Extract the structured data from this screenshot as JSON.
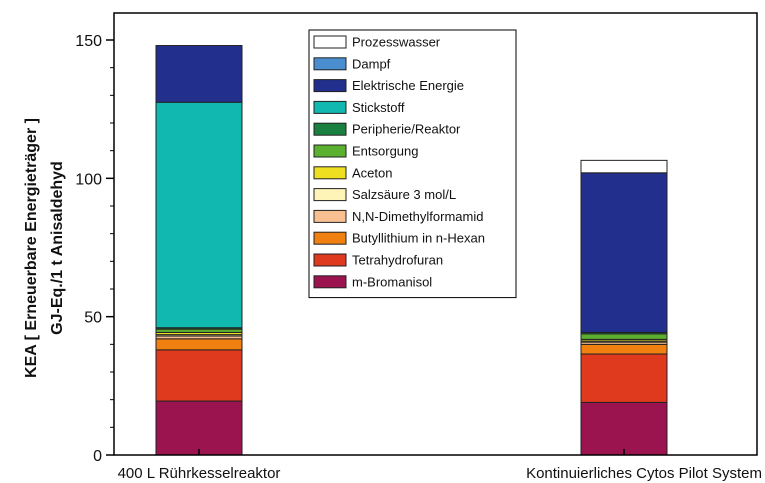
{
  "chart_data": {
    "type": "bar",
    "stacked": true,
    "ylabel_line1": "KEA  [ Erneuerbare Energieträger ]",
    "ylabel_line2": "GJ-Eq./1 t Anisaldehyd",
    "ylim": [
      0,
      160
    ],
    "yticks": [
      0,
      50,
      100,
      150
    ],
    "categories": [
      "400 L Rührkesselreaktor",
      "Kontinuierliches Cytos Pilot System"
    ],
    "legend_position": "top-center",
    "series": [
      {
        "name": "m-Bromanisol",
        "color": "#9b1450",
        "values": [
          19.5,
          19.0
        ]
      },
      {
        "name": "Tetrahydrofuran",
        "color": "#e03a1e",
        "values": [
          18.5,
          17.5
        ]
      },
      {
        "name": "Butyllithium in n-Hexan",
        "color": "#f08010",
        "values": [
          4.0,
          3.5
        ]
      },
      {
        "name": "N,N-Dimethylformamid",
        "color": "#f8c090",
        "values": [
          1.0,
          0.8
        ]
      },
      {
        "name": "Salzsäure 3 mol/L",
        "color": "#fff4b8",
        "values": [
          0.5,
          0.4
        ]
      },
      {
        "name": "Aceton",
        "color": "#eee020",
        "values": [
          0.8,
          0.6
        ]
      },
      {
        "name": "Entsorgung",
        "color": "#5cb030",
        "values": [
          1.2,
          2.0
        ]
      },
      {
        "name": "Peripherie/Reaktor",
        "color": "#1a8040",
        "values": [
          0.5,
          0.5
        ]
      },
      {
        "name": "Stickstoff",
        "color": "#10b8b0",
        "values": [
          81.5,
          0
        ]
      },
      {
        "name": "Elektrische Energie",
        "color": "#232f8c",
        "values": [
          20.5,
          57.7
        ]
      },
      {
        "name": "Dampf",
        "color": "#4a8ed0",
        "values": [
          0,
          0
        ]
      },
      {
        "name": "Prozesswasser",
        "color": "#ffffff",
        "values": [
          0,
          4.5
        ]
      }
    ]
  }
}
